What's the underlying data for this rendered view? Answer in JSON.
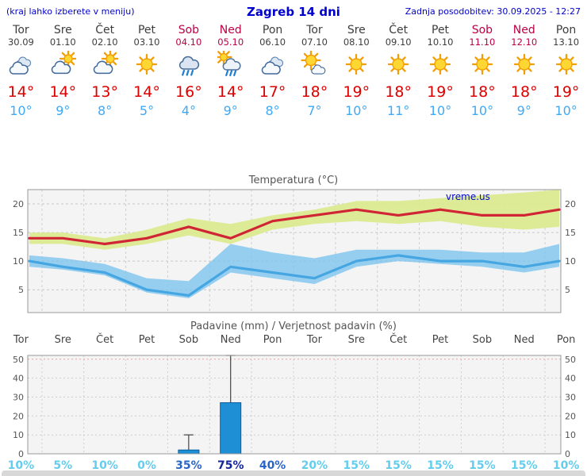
{
  "header": {
    "left_note": "(kraj lahko izberete v meniju)",
    "title": "Zagreb 14 dni",
    "last_update": "Zadnja posodobitev: 30.09.2025 - 12:27"
  },
  "colors": {
    "accent_blue": "#0000cc",
    "weekend_red": "#bb0044",
    "max_temp_red": "#dd0000",
    "min_temp_blue": "#3fa9f5",
    "bar_blue": "#1e8fd5",
    "bar_border": "#0c5c9a",
    "temp_line_red": "#d02535",
    "temp_line_blue": "#45a6e2",
    "band_green": "#dcea8c",
    "band_blue": "#7ec4ed",
    "watermark_blue": "#0008c8",
    "prob_low": "#63cdee",
    "prob_mid": "#2a66c8",
    "prob_high": "#12269e"
  },
  "days": [
    {
      "name": "Tor",
      "date": "30.09",
      "weekend": false,
      "icon": "cloudy",
      "tmax": 14,
      "tmin": 10
    },
    {
      "name": "Sre",
      "date": "01.10",
      "weekend": false,
      "icon": "partly-cloudy",
      "tmax": 14,
      "tmin": 9
    },
    {
      "name": "Čet",
      "date": "02.10",
      "weekend": false,
      "icon": "partly-cloudy",
      "tmax": 13,
      "tmin": 8
    },
    {
      "name": "Pet",
      "date": "03.10",
      "weekend": false,
      "icon": "sunny",
      "tmax": 14,
      "tmin": 5
    },
    {
      "name": "Sob",
      "date": "04.10",
      "weekend": true,
      "icon": "rain",
      "tmax": 16,
      "tmin": 4
    },
    {
      "name": "Ned",
      "date": "05.10",
      "weekend": true,
      "icon": "rain-sun",
      "tmax": 14,
      "tmin": 9
    },
    {
      "name": "Pon",
      "date": "06.10",
      "weekend": false,
      "icon": "cloudy",
      "tmax": 17,
      "tmin": 8
    },
    {
      "name": "Tor",
      "date": "07.10",
      "weekend": false,
      "icon": "partly-sunny",
      "tmax": 18,
      "tmin": 7
    },
    {
      "name": "Sre",
      "date": "08.10",
      "weekend": false,
      "icon": "sunny",
      "tmax": 19,
      "tmin": 10
    },
    {
      "name": "Čet",
      "date": "09.10",
      "weekend": false,
      "icon": "sunny",
      "tmax": 18,
      "tmin": 11
    },
    {
      "name": "Pet",
      "date": "10.10",
      "weekend": false,
      "icon": "sunny",
      "tmax": 19,
      "tmin": 10
    },
    {
      "name": "Sob",
      "date": "11.10",
      "weekend": true,
      "icon": "sunny",
      "tmax": 18,
      "tmin": 10
    },
    {
      "name": "Ned",
      "date": "12.10",
      "weekend": true,
      "icon": "sunny",
      "tmax": 18,
      "tmin": 9
    },
    {
      "name": "Pon",
      "date": "13.10",
      "weekend": false,
      "icon": "sunny",
      "tmax": 19,
      "tmin": 10
    }
  ],
  "chart_data": [
    {
      "type": "line",
      "title": "Temperatura (°C)",
      "watermark": "vreme.us",
      "x_labels": [
        "Tor",
        "Sre",
        "Čet",
        "Pet",
        "Sob",
        "Ned",
        "Pon",
        "Tor",
        "Sre",
        "Čet",
        "Pet",
        "Sob",
        "Ned",
        "Pon"
      ],
      "series": [
        {
          "name": "max_temp",
          "values": [
            14,
            14,
            13,
            14,
            16,
            14,
            17,
            18,
            19,
            18,
            19,
            18,
            18,
            19
          ]
        },
        {
          "name": "min_temp",
          "values": [
            10,
            9,
            8,
            5,
            4,
            9,
            8,
            7,
            10,
            11,
            10,
            10,
            9,
            10
          ]
        }
      ],
      "bands": {
        "max_upper": [
          15,
          15,
          14,
          15.5,
          17.5,
          16.5,
          18,
          19,
          20.5,
          20.5,
          21,
          21.5,
          22,
          22.5
        ],
        "max_lower": [
          13,
          13,
          12,
          13,
          14.5,
          13,
          15.5,
          16.5,
          17,
          16.5,
          17,
          16,
          15.5,
          16
        ],
        "min_upper": [
          11,
          10.5,
          9.5,
          7,
          6.5,
          13,
          11.5,
          10.5,
          12,
          12,
          12,
          11.5,
          11.5,
          13
        ],
        "min_lower": [
          9,
          8.5,
          7.5,
          4.5,
          3.5,
          8,
          7,
          6,
          9,
          10,
          9.5,
          9,
          8,
          9
        ]
      },
      "ylim": [
        1,
        22.5
      ],
      "yticks": [
        5,
        10,
        15,
        20
      ],
      "grid": "dashed"
    },
    {
      "type": "bar",
      "title": "Padavine (mm) / Verjetnost padavin (%)",
      "x_labels": [
        "Tor",
        "Sre",
        "Čet",
        "Pet",
        "Sob",
        "Ned",
        "Pon",
        "Tor",
        "Sre",
        "Čet",
        "Pet",
        "Sob",
        "Ned",
        "Pon"
      ],
      "values": [
        0,
        0,
        0,
        0,
        2,
        27,
        0,
        0,
        0,
        0,
        0,
        0,
        0,
        0
      ],
      "whisker_high": [
        0,
        0,
        0,
        0,
        10,
        52,
        0,
        0,
        0,
        0,
        0,
        0,
        0,
        0
      ],
      "whisker_low": [
        0,
        0,
        0,
        0,
        0,
        5,
        0,
        0,
        0,
        0,
        0,
        0,
        0,
        0
      ],
      "probabilities": [
        10,
        5,
        10,
        0,
        35,
        75,
        40,
        20,
        15,
        15,
        15,
        15,
        15,
        10
      ],
      "ylim": [
        0,
        52
      ],
      "yticks": [
        0,
        10,
        20,
        30,
        40,
        50
      ],
      "grid": "dotted"
    }
  ]
}
